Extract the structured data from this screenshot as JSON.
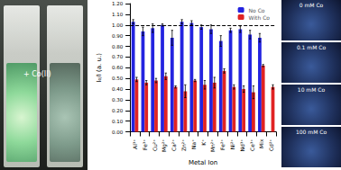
{
  "chart_data": {
    "type": "bar",
    "categories": [
      "Al³⁺",
      "Fe³⁺",
      "Cu²⁺",
      "Mg²⁺",
      "Ca²⁺",
      "Zn²⁺",
      "Na⁺",
      "K⁺",
      "Mn²⁺",
      "Fe²⁺",
      "Ni²⁺",
      "Nd³⁺",
      "Ce³⁺",
      "Mix",
      "Cd²⁺"
    ],
    "series": [
      {
        "name": "No Co",
        "color": "#2323e0",
        "values": [
          1.03,
          0.94,
          0.97,
          1.0,
          0.88,
          1.03,
          1.02,
          0.98,
          0.96,
          0.85,
          0.95,
          0.96,
          0.91,
          0.88,
          null
        ],
        "errors": [
          0.02,
          0.04,
          0.04,
          0.01,
          0.07,
          0.02,
          0.02,
          0.02,
          0.04,
          0.05,
          0.02,
          0.03,
          0.04,
          0.04,
          null
        ]
      },
      {
        "name": "With Co",
        "color": "#e02323",
        "values": [
          0.49,
          0.46,
          0.48,
          0.52,
          0.42,
          0.38,
          0.48,
          0.44,
          0.46,
          0.57,
          0.42,
          0.4,
          0.37,
          0.62,
          0.42
        ],
        "errors": [
          0.02,
          0.02,
          0.02,
          0.03,
          0.01,
          0.06,
          0.01,
          0.04,
          0.05,
          0.02,
          0.02,
          0.03,
          0.06,
          0.01,
          0.02
        ]
      }
    ],
    "x_label": "Metal Ion",
    "y_label": "I₀/I (a. u.)",
    "ylim": [
      0,
      1.2
    ],
    "yticks": [
      {
        "value": 0,
        "label": "0.00"
      },
      {
        "value": 0.1,
        "label": "0.10"
      },
      {
        "value": 0.2,
        "label": "0.20"
      },
      {
        "value": 0.3,
        "label": "0.30"
      },
      {
        "value": 0.4,
        "label": "0.40"
      },
      {
        "value": 0.5,
        "label": "0.50"
      },
      {
        "value": 0.6,
        "label": "0.60"
      },
      {
        "value": 0.7,
        "label": "0.70"
      },
      {
        "value": 0.8,
        "label": "0.80"
      },
      {
        "value": 0.9,
        "label": "0.90"
      },
      {
        "value": 1,
        "label": "1.00"
      },
      {
        "value": 1.1,
        "label": "1.10"
      },
      {
        "value": 1.2,
        "label": "1.20"
      }
    ],
    "reference_line": {
      "value": 1,
      "line_style": "dashed"
    },
    "legend": "upper right",
    "grid": false
  },
  "left_photo": {
    "annotation": "+ Co(II)"
  },
  "right_photos": {
    "labels": [
      "0 mM Co",
      "0.1 mM Co",
      "10 mM Co",
      "100 mM Co"
    ]
  }
}
